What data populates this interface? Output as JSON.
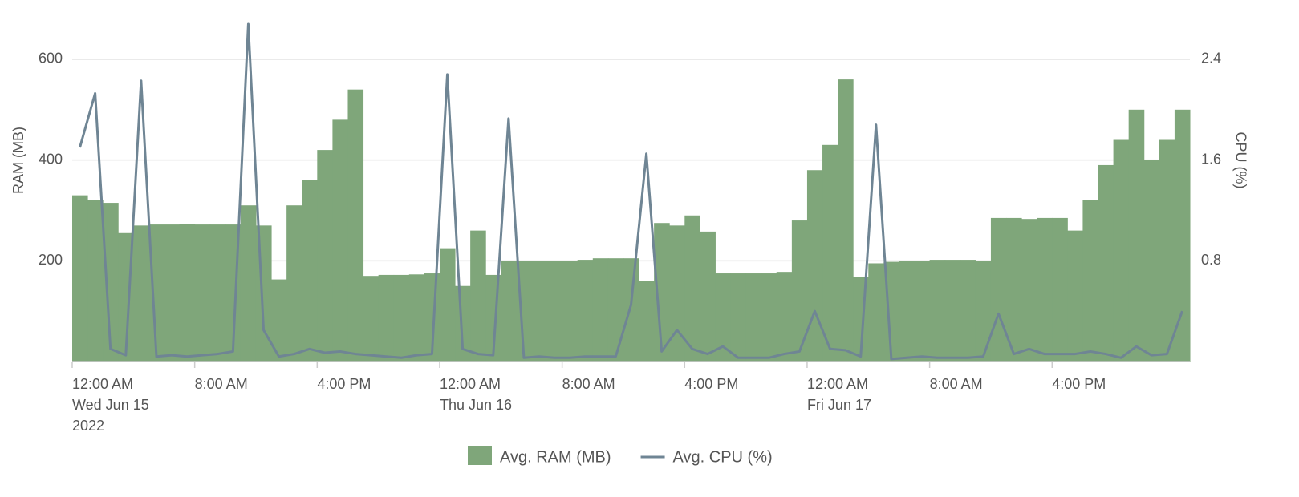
{
  "chart_data": {
    "type": "area-line",
    "ylabel": "RAM (MB)",
    "y2label": "CPU (%)",
    "x": [
      0,
      1,
      2,
      3,
      4,
      5,
      6,
      7,
      8,
      9,
      10,
      11,
      12,
      13,
      14,
      15,
      16,
      17,
      18,
      19,
      20,
      21,
      22,
      23,
      24,
      25,
      26,
      27,
      28,
      29,
      30,
      31,
      32,
      33,
      34,
      35,
      36,
      37,
      38,
      39,
      40,
      41,
      42,
      43,
      44,
      45,
      46,
      47,
      48,
      49,
      50,
      51,
      52,
      53,
      54,
      55,
      56,
      57,
      58,
      59,
      60,
      61,
      62,
      63,
      64,
      65,
      66,
      67,
      68,
      69,
      70,
      71,
      72
    ],
    "xlim": [
      0,
      73
    ],
    "xticks": [
      {
        "value": 0,
        "label": "12:00 AM"
      },
      {
        "value": 8,
        "label": "8:00 AM"
      },
      {
        "value": 16,
        "label": "4:00 PM"
      },
      {
        "value": 24,
        "label": "12:00 AM"
      },
      {
        "value": 32,
        "label": "8:00 AM"
      },
      {
        "value": 40,
        "label": "4:00 PM"
      },
      {
        "value": 48,
        "label": "12:00 AM"
      },
      {
        "value": 56,
        "label": "8:00 AM"
      },
      {
        "value": 64,
        "label": "4:00 PM"
      }
    ],
    "xtick_dates": [
      {
        "value": 0,
        "label": "Wed Jun 15"
      },
      {
        "value": 24,
        "label": "Thu Jun 16"
      },
      {
        "value": 48,
        "label": "Fri Jun 17"
      }
    ],
    "xtick_year": {
      "value": 0,
      "label": "2022"
    },
    "ylim": [
      0,
      670
    ],
    "yticks": [
      200,
      400,
      600
    ],
    "y2lim": [
      0,
      2.68
    ],
    "y2ticks": [
      0.8,
      1.6,
      2.4
    ],
    "grid": true,
    "legend": "bottom",
    "series": [
      {
        "name": "Avg. RAM (MB)",
        "color": "#7fa67a",
        "kind": "area",
        "values": [
          330,
          320,
          315,
          255,
          270,
          272,
          272,
          273,
          272,
          272,
          272,
          310,
          270,
          163,
          310,
          360,
          420,
          480,
          540,
          170,
          172,
          172,
          173,
          175,
          225,
          150,
          260,
          172,
          200,
          200,
          200,
          200,
          200,
          202,
          205,
          205,
          205,
          160,
          275,
          270,
          290,
          258,
          175,
          175,
          175,
          175,
          178,
          280,
          380,
          430,
          560,
          168,
          195,
          198,
          200,
          200,
          202,
          202,
          202,
          200,
          285,
          285,
          283,
          285,
          285,
          260,
          320,
          390,
          440,
          500,
          400,
          440,
          500
        ]
      },
      {
        "name": "Avg. CPU (%)",
        "color": "#6f8594",
        "kind": "line",
        "axis": "y2",
        "values": [
          1.7,
          2.13,
          0.1,
          0.05,
          2.23,
          0.04,
          0.05,
          0.04,
          0.05,
          0.06,
          0.08,
          2.68,
          0.25,
          0.04,
          0.06,
          0.1,
          0.07,
          0.08,
          0.06,
          0.05,
          0.04,
          0.03,
          0.05,
          0.06,
          2.28,
          0.1,
          0.06,
          0.05,
          1.93,
          0.03,
          0.04,
          0.03,
          0.03,
          0.04,
          0.04,
          0.04,
          0.45,
          1.65,
          0.08,
          0.25,
          0.1,
          0.06,
          0.12,
          0.03,
          0.03,
          0.03,
          0.06,
          0.08,
          0.4,
          0.1,
          0.09,
          0.04,
          1.88,
          0.02,
          0.03,
          0.04,
          0.03,
          0.03,
          0.03,
          0.04,
          0.38,
          0.06,
          0.1,
          0.06,
          0.06,
          0.06,
          0.08,
          0.06,
          0.03,
          0.12,
          0.05,
          0.06,
          0.4
        ]
      }
    ]
  }
}
